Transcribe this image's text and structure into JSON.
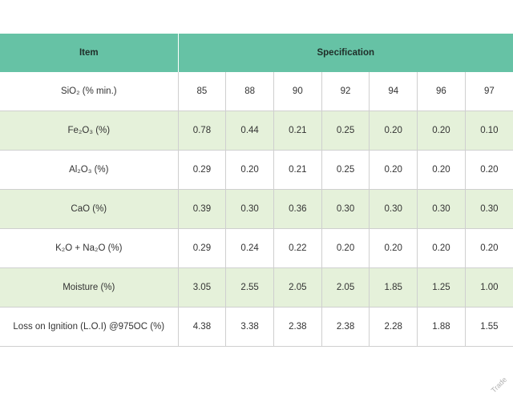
{
  "table": {
    "header_item": "Item",
    "header_spec": "Specification",
    "rows": [
      {
        "label": "SiO₂ (% min.)",
        "values": [
          "85",
          "88",
          "90",
          "92",
          "94",
          "96",
          "97"
        ]
      },
      {
        "label": "Fe₂O₃ (%)",
        "values": [
          "0.78",
          "0.44",
          "0.21",
          "0.25",
          "0.20",
          "0.20",
          "0.10"
        ]
      },
      {
        "label": "Al₂O₃ (%)",
        "values": [
          "0.29",
          "0.20",
          "0.21",
          "0.25",
          "0.20",
          "0.20",
          "0.20"
        ]
      },
      {
        "label": "CaO (%)",
        "values": [
          "0.39",
          "0.30",
          "0.36",
          "0.30",
          "0.30",
          "0.30",
          "0.30"
        ]
      },
      {
        "label": "K₂O + Na₂O (%)",
        "values": [
          "0.29",
          "0.24",
          "0.22",
          "0.20",
          "0.20",
          "0.20",
          "0.20"
        ]
      },
      {
        "label": "Moisture (%)",
        "values": [
          "3.05",
          "2.55",
          "2.05",
          "2.05",
          "1.85",
          "1.25",
          "1.00"
        ]
      },
      {
        "label": "Loss on Ignition (L.O.I) @975OC (%)",
        "values": [
          "4.38",
          "3.38",
          "2.38",
          "2.38",
          "2.28",
          "1.88",
          "1.55"
        ]
      }
    ]
  },
  "watermark": "Trade"
}
